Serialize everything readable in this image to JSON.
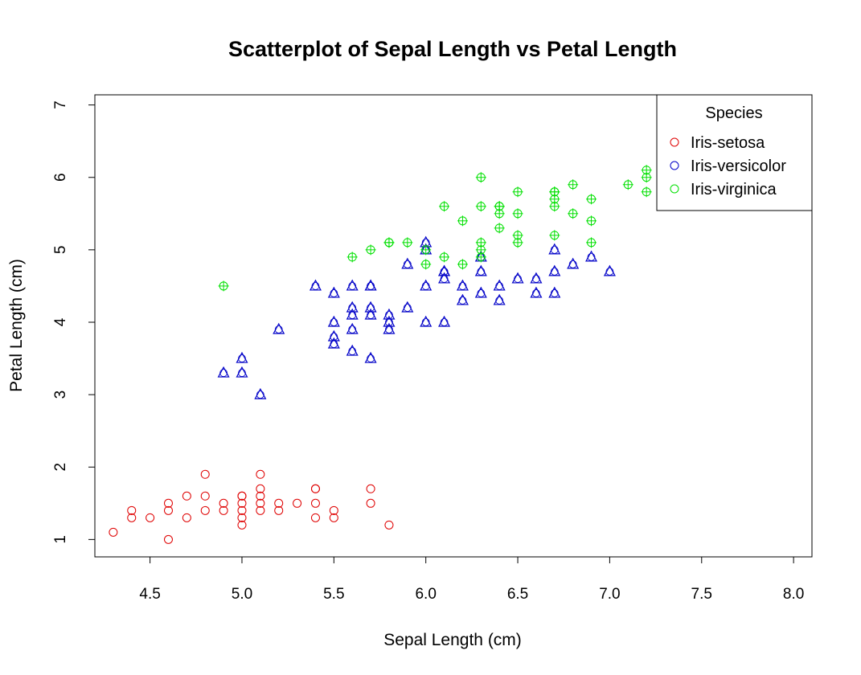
{
  "chart_data": {
    "type": "scatter",
    "title": "Scatterplot of Sepal Length vs Petal Length",
    "xlabel": "Sepal Length (cm)",
    "ylabel": "Petal Length (cm)",
    "xlim": [
      4.2,
      8.1
    ],
    "ylim": [
      0.76,
      7.14
    ],
    "xticks": [
      "4.5",
      "5.0",
      "5.5",
      "6.0",
      "6.5",
      "7.0",
      "7.5",
      "8.0"
    ],
    "yticks": [
      "1",
      "2",
      "3",
      "4",
      "5",
      "6",
      "7"
    ],
    "grid": false,
    "legend": {
      "title": "Species",
      "placement": "top-right",
      "entries": [
        "Iris-setosa",
        "Iris-versicolor",
        "Iris-virginica"
      ]
    },
    "series": [
      {
        "name": "Iris-setosa",
        "color": "#DF0000",
        "marker": "circle",
        "x": [
          4.3,
          4.4,
          4.4,
          4.5,
          4.6,
          4.6,
          4.6,
          4.7,
          4.7,
          4.8,
          4.8,
          4.8,
          4.9,
          4.9,
          5.0,
          5.0,
          5.0,
          5.0,
          5.0,
          5.0,
          5.1,
          5.1,
          5.1,
          5.1,
          5.1,
          5.2,
          5.2,
          5.3,
          5.4,
          5.4,
          5.4,
          5.4,
          5.5,
          5.5,
          5.7,
          5.7,
          5.8
        ],
        "y": [
          1.1,
          1.3,
          1.4,
          1.3,
          1.0,
          1.4,
          1.5,
          1.3,
          1.6,
          1.4,
          1.6,
          1.9,
          1.4,
          1.5,
          1.2,
          1.3,
          1.4,
          1.5,
          1.6,
          1.6,
          1.4,
          1.5,
          1.6,
          1.7,
          1.9,
          1.4,
          1.5,
          1.5,
          1.3,
          1.5,
          1.7,
          1.7,
          1.3,
          1.4,
          1.5,
          1.7,
          1.2
        ]
      },
      {
        "name": "Iris-versicolor",
        "color": "#0000C8",
        "marker": "circle",
        "x": [
          4.9,
          5.0,
          5.0,
          5.1,
          5.2,
          5.4,
          5.5,
          5.5,
          5.5,
          5.5,
          5.6,
          5.6,
          5.6,
          5.6,
          5.6,
          5.7,
          5.7,
          5.7,
          5.7,
          5.7,
          5.8,
          5.8,
          5.8,
          5.9,
          5.9,
          6.0,
          6.0,
          6.0,
          6.0,
          6.1,
          6.1,
          6.1,
          6.1,
          6.2,
          6.2,
          6.3,
          6.3,
          6.3,
          6.4,
          6.4,
          6.5,
          6.6,
          6.6,
          6.7,
          6.7,
          6.7,
          6.8,
          6.9,
          7.0
        ],
        "y": [
          3.3,
          3.3,
          3.5,
          3.0,
          3.9,
          4.5,
          3.7,
          3.8,
          4.0,
          4.4,
          3.6,
          3.9,
          4.1,
          4.2,
          4.5,
          3.5,
          4.1,
          4.2,
          4.5,
          4.5,
          3.9,
          4.0,
          4.1,
          4.2,
          4.8,
          4.0,
          4.5,
          5.1,
          5.0,
          4.0,
          4.6,
          4.7,
          4.7,
          4.3,
          4.5,
          4.4,
          4.7,
          4.9,
          4.3,
          4.5,
          4.6,
          4.4,
          4.6,
          4.4,
          4.7,
          5.0,
          4.8,
          4.9,
          4.7
        ]
      },
      {
        "name": "Iris-virginica",
        "color": "#00E000",
        "marker": "circle",
        "x": [
          4.9,
          5.6,
          5.7,
          5.8,
          5.8,
          5.9,
          6.0,
          6.0,
          6.1,
          6.1,
          6.2,
          6.2,
          6.3,
          6.3,
          6.3,
          6.3,
          6.3,
          6.4,
          6.4,
          6.4,
          6.4,
          6.5,
          6.5,
          6.5,
          6.5,
          6.7,
          6.7,
          6.7,
          6.7,
          6.7,
          6.8,
          6.8,
          6.9,
          6.9,
          6.9,
          7.1,
          7.2,
          7.2,
          7.2
        ],
        "y": [
          4.5,
          4.9,
          5.0,
          5.1,
          5.1,
          5.1,
          4.8,
          5.0,
          4.9,
          5.6,
          4.8,
          5.4,
          4.9,
          5.0,
          5.1,
          5.6,
          6.0,
          5.3,
          5.5,
          5.6,
          5.6,
          5.1,
          5.2,
          5.5,
          5.8,
          5.2,
          5.6,
          5.7,
          5.8,
          5.8,
          5.5,
          5.9,
          5.1,
          5.4,
          5.7,
          5.9,
          5.8,
          6.0,
          6.1
        ]
      }
    ]
  }
}
